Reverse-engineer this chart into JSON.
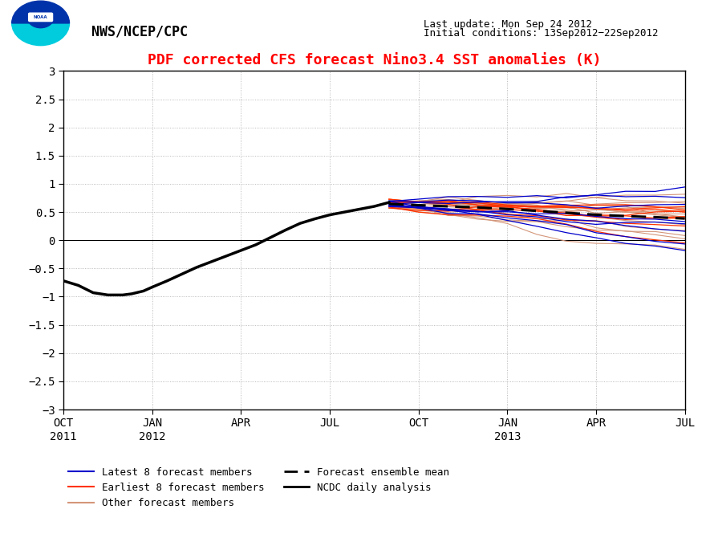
{
  "title": "PDF corrected CFS forecast Nino3.4 SST anomalies (K)",
  "header_left": "NWS/NCEP/CPC",
  "header_right_line1": "Last update: Mon Sep 24 2012",
  "header_right_line2": "Initial conditions: 13Sep2012−22Sep2012",
  "ylim": [
    -3,
    3
  ],
  "yticks": [
    -3,
    -2.5,
    -2,
    -1.5,
    -1,
    -0.5,
    0,
    0.5,
    1,
    1.5,
    2,
    2.5,
    3
  ],
  "xtick_labels": [
    "OCT\n2011",
    "JAN\n2012",
    "APR",
    "JUL",
    "OCT",
    "JAN\n2013",
    "APR",
    "JUL"
  ],
  "title_color": "#FF0000",
  "color_latest": "#0000CC",
  "color_earliest": "#FF3300",
  "color_other": "#D4967A",
  "color_ensemble_mean": "#000000",
  "color_ncdc": "#000000",
  "hist_x": [
    0,
    0.5,
    1,
    1.5,
    2,
    2.3,
    2.7,
    3,
    3.5,
    4,
    4.5,
    5,
    5.5,
    6,
    6.5,
    7,
    7.5,
    8,
    8.5,
    9,
    9.5,
    10,
    10.5,
    11
  ],
  "hist_y": [
    -0.72,
    -0.8,
    -0.93,
    -0.97,
    -0.97,
    -0.95,
    -0.9,
    -0.83,
    -0.72,
    -0.6,
    -0.48,
    -0.38,
    -0.28,
    -0.18,
    -0.08,
    0.05,
    0.18,
    0.3,
    0.38,
    0.45,
    0.5,
    0.55,
    0.6,
    0.67
  ]
}
